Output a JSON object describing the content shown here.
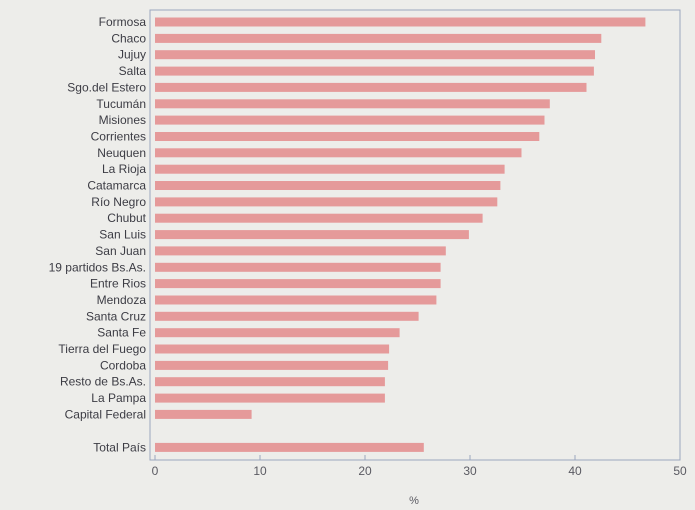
{
  "chart_data": {
    "type": "bar",
    "orientation": "horizontal",
    "categories": [
      "Formosa",
      "Chaco",
      "Jujuy",
      "Salta",
      "Sgo.del Estero",
      "Tucumán",
      "Misiones",
      "Corrientes",
      "Neuquen",
      "La Rioja",
      "Catamarca",
      "Río Negro",
      "Chubut",
      "San Luis",
      "San Juan",
      "19 partidos Bs.As.",
      "Entre Rios",
      "Mendoza",
      "Santa Cruz",
      "Santa Fe",
      "Tierra del Fuego",
      "Cordoba",
      "Resto de Bs.As.",
      "La Pampa",
      "Capital Federal",
      "Total País"
    ],
    "values": [
      46.7,
      42.5,
      41.9,
      41.8,
      41.1,
      37.6,
      37.1,
      36.6,
      34.9,
      33.3,
      32.9,
      32.6,
      31.2,
      29.9,
      27.7,
      27.2,
      27.2,
      26.8,
      25.1,
      23.3,
      22.3,
      22.2,
      21.9,
      21.9,
      9.2,
      25.6
    ],
    "xlim": [
      0,
      50
    ],
    "xticks": [
      0,
      10,
      20,
      30,
      40,
      50
    ],
    "xlabel": "%",
    "ylabel": "",
    "title": "",
    "bar_color": "#e59a9a",
    "grid": false
  }
}
